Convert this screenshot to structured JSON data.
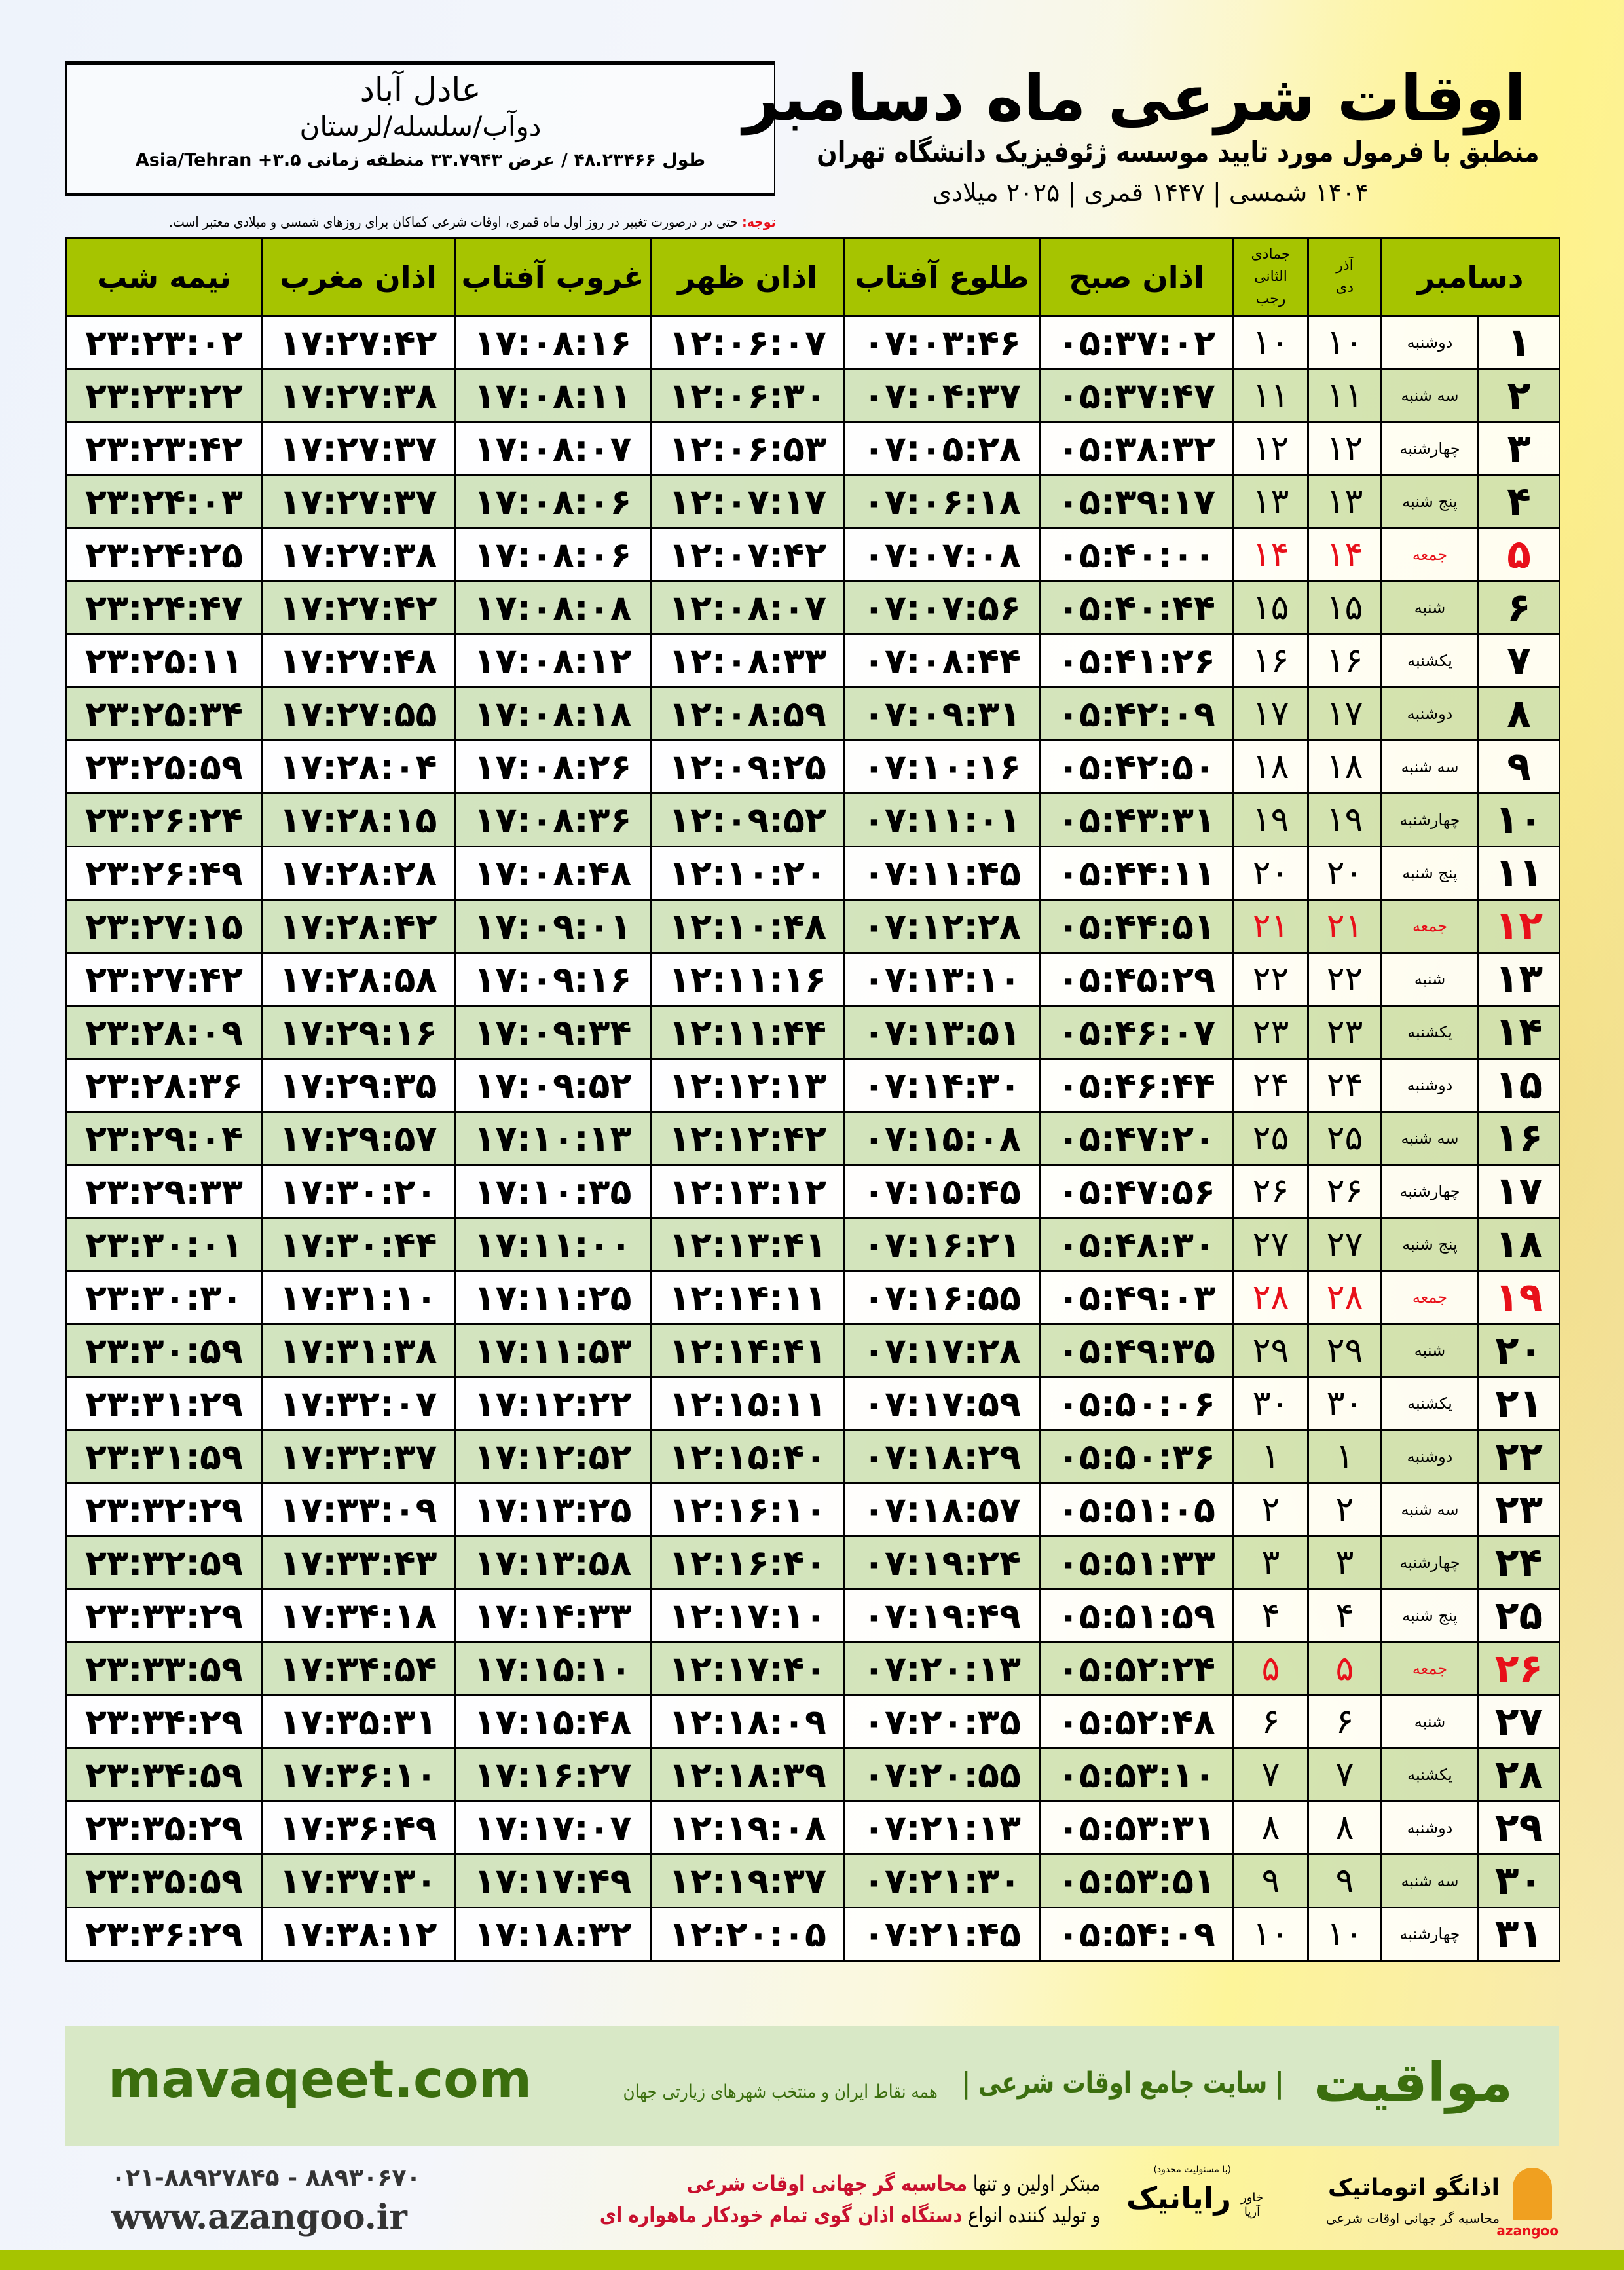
{
  "header": {
    "title": "اوقات شرعی ماه دسامبر",
    "subtitle": "منطبق با فرمول مورد تایید موسسه ژئوفیزیک دانشگاه تهران",
    "years": "۱۴۰۴ شمسی | ۱۴۴۷ قمری | ۲۰۲۵ میلادی"
  },
  "location": {
    "city": "عادل آباد",
    "region": "دوآب/سلسله/لرستان",
    "coords": "طول ۴۸.۲۳۴۶۶ / عرض ۳۳.۷۹۴۳ منطقه زمانی ۳.۵+ Asia/Tehran"
  },
  "note": {
    "label": "توجه:",
    "text": " حتی در درصورت تغییر در روز اول ماه قمری، اوقات شرعی کماکان برای روزهای شمسی و میلادی معتبر است."
  },
  "table": {
    "headers": {
      "month": "دسامبر",
      "shamsi_top": "آذر",
      "shamsi_bottom": "دی",
      "qamari_top": "جمادی الثانی",
      "qamari_bottom": "رجب",
      "fajr": "اذان صبح",
      "sunrise": "طلوع آفتاب",
      "dhuhr": "اذان ظهر",
      "sunset": "غروب آفتاب",
      "maghrib": "اذان مغرب",
      "midnight": "نیمه شب"
    },
    "rows": [
      {
        "day": "۱",
        "weekday": "دوشنبه",
        "shamsi": "۱۰",
        "qamari": "۱۰",
        "fajr": "۰۵:۳۷:۰۲",
        "sunrise": "۰۷:۰۳:۴۶",
        "dhuhr": "۱۲:۰۶:۰۷",
        "sunset": "۱۷:۰۸:۱۶",
        "maghrib": "۱۷:۲۷:۴۲",
        "midnight": "۲۳:۲۳:۰۲"
      },
      {
        "day": "۲",
        "weekday": "سه شنبه",
        "shamsi": "۱۱",
        "qamari": "۱۱",
        "fajr": "۰۵:۳۷:۴۷",
        "sunrise": "۰۷:۰۴:۳۷",
        "dhuhr": "۱۲:۰۶:۳۰",
        "sunset": "۱۷:۰۸:۱۱",
        "maghrib": "۱۷:۲۷:۳۸",
        "midnight": "۲۳:۲۳:۲۲"
      },
      {
        "day": "۳",
        "weekday": "چهارشنبه",
        "shamsi": "۱۲",
        "qamari": "۱۲",
        "fajr": "۰۵:۳۸:۳۲",
        "sunrise": "۰۷:۰۵:۲۸",
        "dhuhr": "۱۲:۰۶:۵۳",
        "sunset": "۱۷:۰۸:۰۷",
        "maghrib": "۱۷:۲۷:۳۷",
        "midnight": "۲۳:۲۳:۴۲"
      },
      {
        "day": "۴",
        "weekday": "پنج شنبه",
        "shamsi": "۱۳",
        "qamari": "۱۳",
        "fajr": "۰۵:۳۹:۱۷",
        "sunrise": "۰۷:۰۶:۱۸",
        "dhuhr": "۱۲:۰۷:۱۷",
        "sunset": "۱۷:۰۸:۰۶",
        "maghrib": "۱۷:۲۷:۳۷",
        "midnight": "۲۳:۲۴:۰۳"
      },
      {
        "day": "۵",
        "weekday": "جمعه",
        "shamsi": "۱۴",
        "qamari": "۱۴",
        "fajr": "۰۵:۴۰:۰۰",
        "sunrise": "۰۷:۰۷:۰۸",
        "dhuhr": "۱۲:۰۷:۴۲",
        "sunset": "۱۷:۰۸:۰۶",
        "maghrib": "۱۷:۲۷:۳۸",
        "midnight": "۲۳:۲۴:۲۵",
        "friday": true
      },
      {
        "day": "۶",
        "weekday": "شنبه",
        "shamsi": "۱۵",
        "qamari": "۱۵",
        "fajr": "۰۵:۴۰:۴۴",
        "sunrise": "۰۷:۰۷:۵۶",
        "dhuhr": "۱۲:۰۸:۰۷",
        "sunset": "۱۷:۰۸:۰۸",
        "maghrib": "۱۷:۲۷:۴۲",
        "midnight": "۲۳:۲۴:۴۷"
      },
      {
        "day": "۷",
        "weekday": "یکشنبه",
        "shamsi": "۱۶",
        "qamari": "۱۶",
        "fajr": "۰۵:۴۱:۲۶",
        "sunrise": "۰۷:۰۸:۴۴",
        "dhuhr": "۱۲:۰۸:۳۳",
        "sunset": "۱۷:۰۸:۱۲",
        "maghrib": "۱۷:۲۷:۴۸",
        "midnight": "۲۳:۲۵:۱۱"
      },
      {
        "day": "۸",
        "weekday": "دوشنبه",
        "shamsi": "۱۷",
        "qamari": "۱۷",
        "fajr": "۰۵:۴۲:۰۹",
        "sunrise": "۰۷:۰۹:۳۱",
        "dhuhr": "۱۲:۰۸:۵۹",
        "sunset": "۱۷:۰۸:۱۸",
        "maghrib": "۱۷:۲۷:۵۵",
        "midnight": "۲۳:۲۵:۳۴"
      },
      {
        "day": "۹",
        "weekday": "سه شنبه",
        "shamsi": "۱۸",
        "qamari": "۱۸",
        "fajr": "۰۵:۴۲:۵۰",
        "sunrise": "۰۷:۱۰:۱۶",
        "dhuhr": "۱۲:۰۹:۲۵",
        "sunset": "۱۷:۰۸:۲۶",
        "maghrib": "۱۷:۲۸:۰۴",
        "midnight": "۲۳:۲۵:۵۹"
      },
      {
        "day": "۱۰",
        "weekday": "چهارشنبه",
        "shamsi": "۱۹",
        "qamari": "۱۹",
        "fajr": "۰۵:۴۳:۳۱",
        "sunrise": "۰۷:۱۱:۰۱",
        "dhuhr": "۱۲:۰۹:۵۲",
        "sunset": "۱۷:۰۸:۳۶",
        "maghrib": "۱۷:۲۸:۱۵",
        "midnight": "۲۳:۲۶:۲۴"
      },
      {
        "day": "۱۱",
        "weekday": "پنج شنبه",
        "shamsi": "۲۰",
        "qamari": "۲۰",
        "fajr": "۰۵:۴۴:۱۱",
        "sunrise": "۰۷:۱۱:۴۵",
        "dhuhr": "۱۲:۱۰:۲۰",
        "sunset": "۱۷:۰۸:۴۸",
        "maghrib": "۱۷:۲۸:۲۸",
        "midnight": "۲۳:۲۶:۴۹"
      },
      {
        "day": "۱۲",
        "weekday": "جمعه",
        "shamsi": "۲۱",
        "qamari": "۲۱",
        "fajr": "۰۵:۴۴:۵۱",
        "sunrise": "۰۷:۱۲:۲۸",
        "dhuhr": "۱۲:۱۰:۴۸",
        "sunset": "۱۷:۰۹:۰۱",
        "maghrib": "۱۷:۲۸:۴۲",
        "midnight": "۲۳:۲۷:۱۵",
        "friday": true
      },
      {
        "day": "۱۳",
        "weekday": "شنبه",
        "shamsi": "۲۲",
        "qamari": "۲۲",
        "fajr": "۰۵:۴۵:۲۹",
        "sunrise": "۰۷:۱۳:۱۰",
        "dhuhr": "۱۲:۱۱:۱۶",
        "sunset": "۱۷:۰۹:۱۶",
        "maghrib": "۱۷:۲۸:۵۸",
        "midnight": "۲۳:۲۷:۴۲"
      },
      {
        "day": "۱۴",
        "weekday": "یکشنبه",
        "shamsi": "۲۳",
        "qamari": "۲۳",
        "fajr": "۰۵:۴۶:۰۷",
        "sunrise": "۰۷:۱۳:۵۱",
        "dhuhr": "۱۲:۱۱:۴۴",
        "sunset": "۱۷:۰۹:۳۴",
        "maghrib": "۱۷:۲۹:۱۶",
        "midnight": "۲۳:۲۸:۰۹"
      },
      {
        "day": "۱۵",
        "weekday": "دوشنبه",
        "shamsi": "۲۴",
        "qamari": "۲۴",
        "fajr": "۰۵:۴۶:۴۴",
        "sunrise": "۰۷:۱۴:۳۰",
        "dhuhr": "۱۲:۱۲:۱۳",
        "sunset": "۱۷:۰۹:۵۲",
        "maghrib": "۱۷:۲۹:۳۵",
        "midnight": "۲۳:۲۸:۳۶"
      },
      {
        "day": "۱۶",
        "weekday": "سه شنبه",
        "shamsi": "۲۵",
        "qamari": "۲۵",
        "fajr": "۰۵:۴۷:۲۰",
        "sunrise": "۰۷:۱۵:۰۸",
        "dhuhr": "۱۲:۱۲:۴۲",
        "sunset": "۱۷:۱۰:۱۳",
        "maghrib": "۱۷:۲۹:۵۷",
        "midnight": "۲۳:۲۹:۰۴"
      },
      {
        "day": "۱۷",
        "weekday": "چهارشنبه",
        "shamsi": "۲۶",
        "qamari": "۲۶",
        "fajr": "۰۵:۴۷:۵۶",
        "sunrise": "۰۷:۱۵:۴۵",
        "dhuhr": "۱۲:۱۳:۱۲",
        "sunset": "۱۷:۱۰:۳۵",
        "maghrib": "۱۷:۳۰:۲۰",
        "midnight": "۲۳:۲۹:۳۳"
      },
      {
        "day": "۱۸",
        "weekday": "پنج شنبه",
        "shamsi": "۲۷",
        "qamari": "۲۷",
        "fajr": "۰۵:۴۸:۳۰",
        "sunrise": "۰۷:۱۶:۲۱",
        "dhuhr": "۱۲:۱۳:۴۱",
        "sunset": "۱۷:۱۱:۰۰",
        "maghrib": "۱۷:۳۰:۴۴",
        "midnight": "۲۳:۳۰:۰۱"
      },
      {
        "day": "۱۹",
        "weekday": "جمعه",
        "shamsi": "۲۸",
        "qamari": "۲۸",
        "fajr": "۰۵:۴۹:۰۳",
        "sunrise": "۰۷:۱۶:۵۵",
        "dhuhr": "۱۲:۱۴:۱۱",
        "sunset": "۱۷:۱۱:۲۵",
        "maghrib": "۱۷:۳۱:۱۰",
        "midnight": "۲۳:۳۰:۳۰",
        "friday": true
      },
      {
        "day": "۲۰",
        "weekday": "شنبه",
        "shamsi": "۲۹",
        "qamari": "۲۹",
        "fajr": "۰۵:۴۹:۳۵",
        "sunrise": "۰۷:۱۷:۲۸",
        "dhuhr": "۱۲:۱۴:۴۱",
        "sunset": "۱۷:۱۱:۵۳",
        "maghrib": "۱۷:۳۱:۳۸",
        "midnight": "۲۳:۳۰:۵۹"
      },
      {
        "day": "۲۱",
        "weekday": "یکشنبه",
        "shamsi": "۳۰",
        "qamari": "۳۰",
        "fajr": "۰۵:۵۰:۰۶",
        "sunrise": "۰۷:۱۷:۵۹",
        "dhuhr": "۱۲:۱۵:۱۱",
        "sunset": "۱۷:۱۲:۲۲",
        "maghrib": "۱۷:۳۲:۰۷",
        "midnight": "۲۳:۳۱:۲۹"
      },
      {
        "day": "۲۲",
        "weekday": "دوشنبه",
        "shamsi": "۱",
        "qamari": "۱",
        "fajr": "۰۵:۵۰:۳۶",
        "sunrise": "۰۷:۱۸:۲۹",
        "dhuhr": "۱۲:۱۵:۴۰",
        "sunset": "۱۷:۱۲:۵۲",
        "maghrib": "۱۷:۳۲:۳۷",
        "midnight": "۲۳:۳۱:۵۹"
      },
      {
        "day": "۲۳",
        "weekday": "سه شنبه",
        "shamsi": "۲",
        "qamari": "۲",
        "fajr": "۰۵:۵۱:۰۵",
        "sunrise": "۰۷:۱۸:۵۷",
        "dhuhr": "۱۲:۱۶:۱۰",
        "sunset": "۱۷:۱۳:۲۵",
        "maghrib": "۱۷:۳۳:۰۹",
        "midnight": "۲۳:۳۲:۲۹"
      },
      {
        "day": "۲۴",
        "weekday": "چهارشنبه",
        "shamsi": "۳",
        "qamari": "۳",
        "fajr": "۰۵:۵۱:۳۳",
        "sunrise": "۰۷:۱۹:۲۴",
        "dhuhr": "۱۲:۱۶:۴۰",
        "sunset": "۱۷:۱۳:۵۸",
        "maghrib": "۱۷:۳۳:۴۳",
        "midnight": "۲۳:۳۲:۵۹"
      },
      {
        "day": "۲۵",
        "weekday": "پنج شنبه",
        "shamsi": "۴",
        "qamari": "۴",
        "fajr": "۰۵:۵۱:۵۹",
        "sunrise": "۰۷:۱۹:۴۹",
        "dhuhr": "۱۲:۱۷:۱۰",
        "sunset": "۱۷:۱۴:۳۳",
        "maghrib": "۱۷:۳۴:۱۸",
        "midnight": "۲۳:۳۳:۲۹"
      },
      {
        "day": "۲۶",
        "weekday": "جمعه",
        "shamsi": "۵",
        "qamari": "۵",
        "fajr": "۰۵:۵۲:۲۴",
        "sunrise": "۰۷:۲۰:۱۳",
        "dhuhr": "۱۲:۱۷:۴۰",
        "sunset": "۱۷:۱۵:۱۰",
        "maghrib": "۱۷:۳۴:۵۴",
        "midnight": "۲۳:۳۳:۵۹",
        "friday": true
      },
      {
        "day": "۲۷",
        "weekday": "شنبه",
        "shamsi": "۶",
        "qamari": "۶",
        "fajr": "۰۵:۵۲:۴۸",
        "sunrise": "۰۷:۲۰:۳۵",
        "dhuhr": "۱۲:۱۸:۰۹",
        "sunset": "۱۷:۱۵:۴۸",
        "maghrib": "۱۷:۳۵:۳۱",
        "midnight": "۲۳:۳۴:۲۹"
      },
      {
        "day": "۲۸",
        "weekday": "یکشنبه",
        "shamsi": "۷",
        "qamari": "۷",
        "fajr": "۰۵:۵۳:۱۰",
        "sunrise": "۰۷:۲۰:۵۵",
        "dhuhr": "۱۲:۱۸:۳۹",
        "sunset": "۱۷:۱۶:۲۷",
        "maghrib": "۱۷:۳۶:۱۰",
        "midnight": "۲۳:۳۴:۵۹"
      },
      {
        "day": "۲۹",
        "weekday": "دوشنبه",
        "shamsi": "۸",
        "qamari": "۸",
        "fajr": "۰۵:۵۳:۳۱",
        "sunrise": "۰۷:۲۱:۱۳",
        "dhuhr": "۱۲:۱۹:۰۸",
        "sunset": "۱۷:۱۷:۰۷",
        "maghrib": "۱۷:۳۶:۴۹",
        "midnight": "۲۳:۳۵:۲۹"
      },
      {
        "day": "۳۰",
        "weekday": "سه شنبه",
        "shamsi": "۹",
        "qamari": "۹",
        "fajr": "۰۵:۵۳:۵۱",
        "sunrise": "۰۷:۲۱:۳۰",
        "dhuhr": "۱۲:۱۹:۳۷",
        "sunset": "۱۷:۱۷:۴۹",
        "maghrib": "۱۷:۳۷:۳۰",
        "midnight": "۲۳:۳۵:۵۹"
      },
      {
        "day": "۳۱",
        "weekday": "چهارشنبه",
        "shamsi": "۱۰",
        "qamari": "۱۰",
        "fajr": "۰۵:۵۴:۰۹",
        "sunrise": "۰۷:۲۱:۴۵",
        "dhuhr": "۱۲:۲۰:۰۵",
        "sunset": "۱۷:۱۸:۳۲",
        "maghrib": "۱۷:۳۸:۱۲",
        "midnight": "۲۳:۳۶:۲۹"
      }
    ]
  },
  "banner": {
    "brand": "مواقیت",
    "slogan": "| سایت جامع اوقات شرعی |",
    "slogan_sub": "همه نقاط ایران و منتخب شهرهای زیارتی جهان",
    "site": "mavaqeet.com"
  },
  "footer": {
    "phones": "۰۲۱-۸۸۹۲۷۸۴۵ - ۸۸۹۳۰۶۷۰",
    "web": "www.azangoo.ir",
    "pitch_line1_a": "مبتکر اولین و تنها ",
    "pitch_line1_b": "محاسبه گر جهانی اوقات شرعی",
    "pitch_line2_a": "و تولید کننده انواع ",
    "pitch_line2_b": "دستگاه اذان گوی تمام خودکار ماهواره ای",
    "rayanik_small": "(با مسئولیت محدود)",
    "rayanik_name": "رایانیک",
    "rayanik_side": "خاور آریا",
    "azangoo_name": "اذانگو اتوماتیک",
    "azangoo_tag": "محاسبه گر جهانی اوقات شرعی",
    "azangoo_latin": "azangoo"
  },
  "colors": {
    "header_green": "#a6c400",
    "row_green": "#d8e8c6",
    "friday_red": "#e8101a",
    "brand_green": "#3b6e0e"
  }
}
